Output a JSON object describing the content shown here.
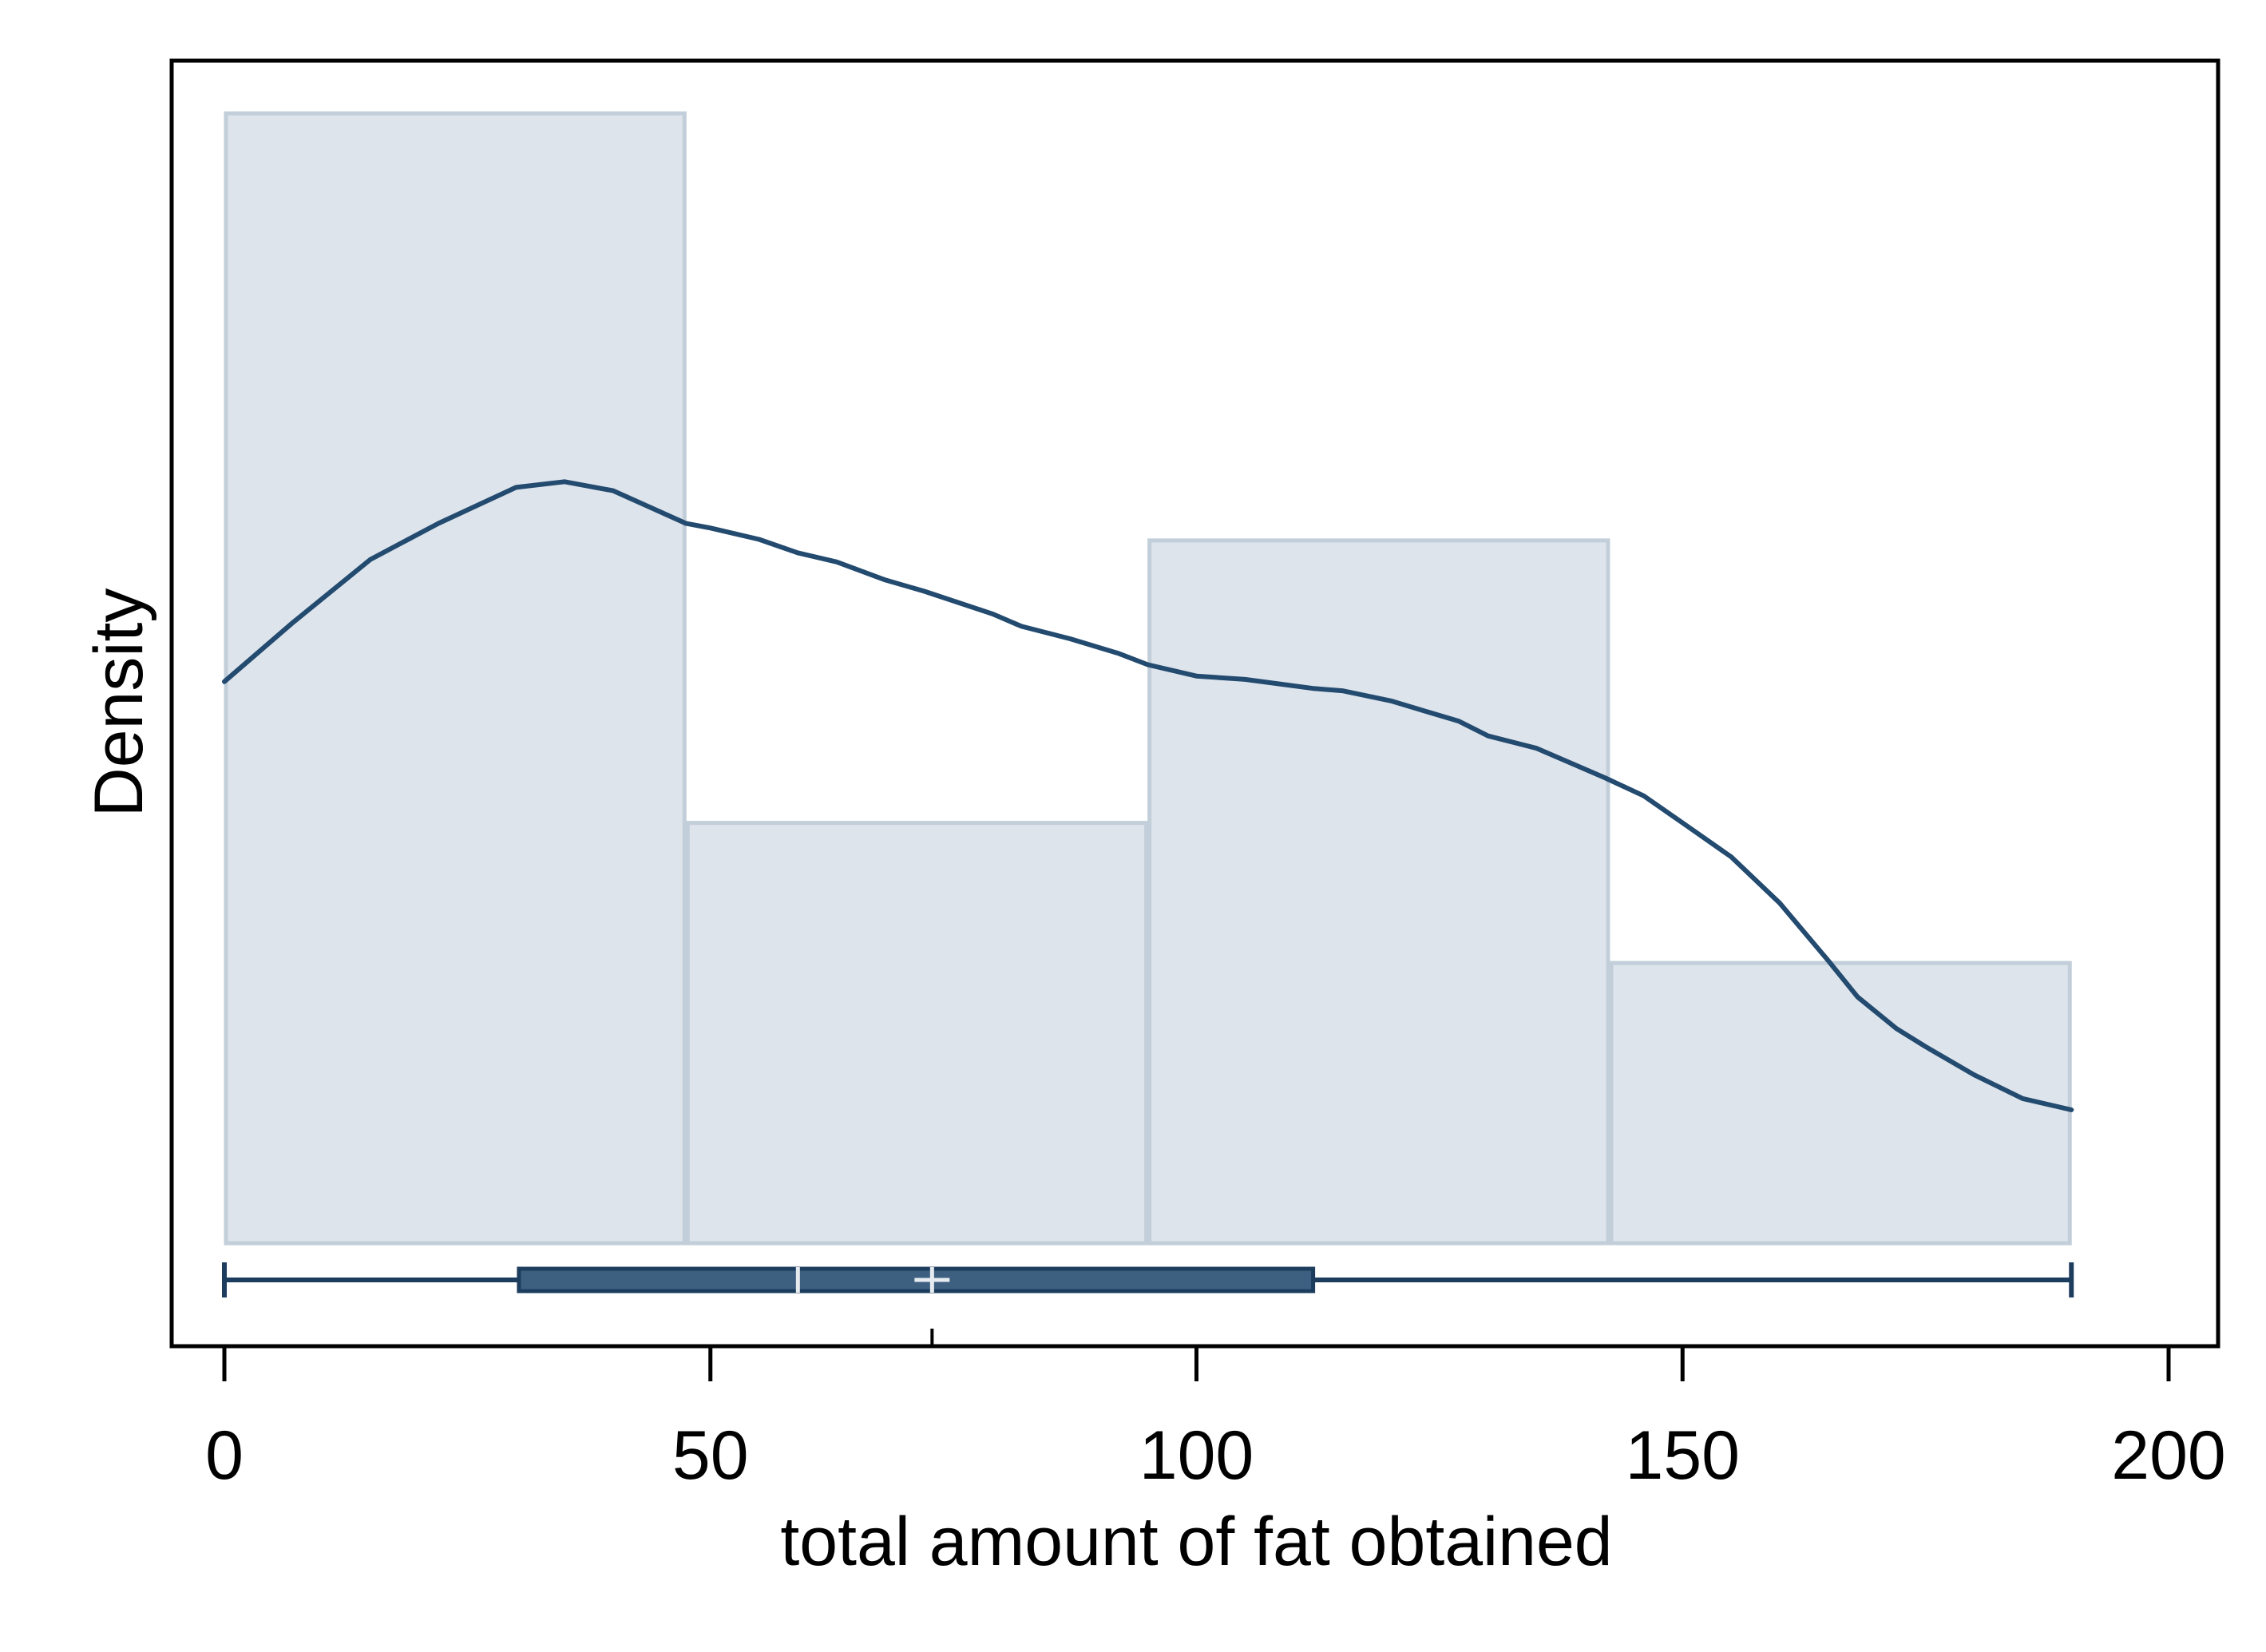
{
  "chart_data": {
    "type": "histogram",
    "xlabel": "total amount of fat obtained",
    "ylabel": "Density",
    "xlim": [
      -5.5,
      205
    ],
    "x_ticks": [
      0,
      50,
      100,
      150,
      200
    ],
    "x_tick_labels": [
      "0",
      "50",
      "100",
      "150",
      "200"
    ],
    "y_ticks_shown": false,
    "grid": false,
    "bins": [
      {
        "x0": 0,
        "x1": 47.5,
        "density": 1.0
      },
      {
        "x0": 47.5,
        "x1": 95,
        "density": 0.372
      },
      {
        "x0": 95,
        "x1": 142.5,
        "density": 0.622
      },
      {
        "x0": 142.5,
        "x1": 190,
        "density": 0.248
      }
    ],
    "density_curve": {
      "x": [
        0,
        7,
        15,
        22,
        30,
        35,
        40,
        47.5,
        50,
        55,
        59,
        63,
        68,
        72,
        79,
        82,
        87,
        92,
        95,
        100,
        105,
        112,
        115,
        120,
        127,
        130,
        135,
        142,
        146,
        150,
        155,
        160,
        165,
        168,
        172,
        175,
        180,
        185,
        190
      ],
      "y": [
        0.497,
        0.549,
        0.605,
        0.637,
        0.669,
        0.674,
        0.666,
        0.637,
        0.633,
        0.623,
        0.611,
        0.603,
        0.587,
        0.577,
        0.557,
        0.546,
        0.535,
        0.522,
        0.512,
        0.502,
        0.499,
        0.491,
        0.489,
        0.48,
        0.462,
        0.449,
        0.438,
        0.412,
        0.396,
        0.372,
        0.342,
        0.301,
        0.25,
        0.218,
        0.19,
        0.174,
        0.149,
        0.128,
        0.118
      ]
    },
    "box_plot": {
      "min": 0,
      "q1": 30.3,
      "median": 59,
      "mean": 72.8,
      "q3": 112,
      "max": 190
    },
    "colors": {
      "bar_fill": "#dde4ec",
      "bar_stroke": "#c2ced9",
      "curve": "#234a6f",
      "box_fill": "#3d5f80",
      "box_stroke": "#1c3d5e",
      "box_marks": "#e6ebf0"
    }
  }
}
